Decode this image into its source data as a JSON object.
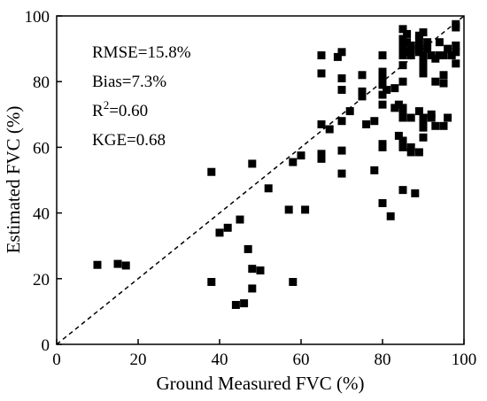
{
  "chart_data": {
    "type": "scatter",
    "title": "",
    "xlabel": "Ground Measured FVC (%)",
    "ylabel": "Estimated FVC (%)",
    "xlim": [
      0,
      100
    ],
    "ylim": [
      0,
      100
    ],
    "xticks": [
      0,
      20,
      40,
      60,
      80,
      100
    ],
    "yticks": [
      0,
      20,
      40,
      60,
      80,
      100
    ],
    "grid": false,
    "legend": "none",
    "reference_line": {
      "x": [
        0,
        100
      ],
      "y": [
        0,
        100
      ],
      "style": "dashed"
    },
    "annotations": {
      "rmse": "RMSE=15.8%",
      "bias": "Bias=7.3%",
      "r2_prefix": "R",
      "r2_sup": "2",
      "r2_value": "=0.60",
      "kge": "KGE=0.68"
    },
    "marker_color": "#000000",
    "points": [
      [
        10,
        24.2
      ],
      [
        15,
        24.5
      ],
      [
        17,
        24
      ],
      [
        38,
        52.5
      ],
      [
        38,
        19
      ],
      [
        40,
        34
      ],
      [
        42,
        35.5
      ],
      [
        44,
        12
      ],
      [
        45,
        38
      ],
      [
        46,
        12.5
      ],
      [
        47,
        29
      ],
      [
        48,
        55
      ],
      [
        48,
        23
      ],
      [
        48,
        17
      ],
      [
        50,
        22.5
      ],
      [
        52,
        47.5
      ],
      [
        57,
        41
      ],
      [
        58,
        19
      ],
      [
        58,
        55.5
      ],
      [
        60,
        57.5
      ],
      [
        61,
        41
      ],
      [
        65,
        88
      ],
      [
        65,
        82.5
      ],
      [
        65,
        67
      ],
      [
        65,
        58
      ],
      [
        65,
        56.5
      ],
      [
        67,
        65.5
      ],
      [
        69,
        87.5
      ],
      [
        70,
        89
      ],
      [
        70,
        81
      ],
      [
        70,
        77.5
      ],
      [
        70,
        68
      ],
      [
        70,
        59
      ],
      [
        70,
        52
      ],
      [
        72,
        71
      ],
      [
        75,
        82
      ],
      [
        75,
        77
      ],
      [
        75,
        75.5
      ],
      [
        76,
        67
      ],
      [
        78,
        68
      ],
      [
        78,
        53
      ],
      [
        80,
        88
      ],
      [
        80,
        83
      ],
      [
        80,
        81
      ],
      [
        80,
        79
      ],
      [
        80,
        76
      ],
      [
        80,
        73
      ],
      [
        80,
        61
      ],
      [
        80,
        60
      ],
      [
        80,
        43
      ],
      [
        81,
        77.5
      ],
      [
        82,
        39
      ],
      [
        83,
        78
      ],
      [
        83,
        72
      ],
      [
        84,
        73
      ],
      [
        84,
        63.5
      ],
      [
        85,
        96
      ],
      [
        85,
        93
      ],
      [
        85,
        91
      ],
      [
        85,
        90
      ],
      [
        85,
        88
      ],
      [
        85,
        85
      ],
      [
        85,
        80
      ],
      [
        85,
        72
      ],
      [
        85,
        70
      ],
      [
        85,
        69
      ],
      [
        85,
        62
      ],
      [
        85,
        60
      ],
      [
        85,
        47
      ],
      [
        86,
        94.5
      ],
      [
        86,
        92
      ],
      [
        86,
        89
      ],
      [
        87,
        91
      ],
      [
        87,
        90
      ],
      [
        87,
        88
      ],
      [
        87,
        69
      ],
      [
        87,
        60
      ],
      [
        87,
        58.5
      ],
      [
        88,
        46
      ],
      [
        89,
        94
      ],
      [
        89,
        93
      ],
      [
        89,
        91
      ],
      [
        89,
        90
      ],
      [
        89,
        89
      ],
      [
        89,
        71
      ],
      [
        89,
        58.5
      ],
      [
        90,
        95
      ],
      [
        90,
        88
      ],
      [
        90,
        86
      ],
      [
        90,
        84
      ],
      [
        90,
        82.5
      ],
      [
        90,
        69
      ],
      [
        90,
        68
      ],
      [
        90,
        66
      ],
      [
        90,
        63
      ],
      [
        91,
        92
      ],
      [
        91,
        90
      ],
      [
        92,
        88
      ],
      [
        92,
        70
      ],
      [
        92,
        69
      ],
      [
        93,
        87
      ],
      [
        93,
        80
      ],
      [
        93,
        66.5
      ],
      [
        94,
        92
      ],
      [
        94,
        88
      ],
      [
        95,
        88
      ],
      [
        95,
        82
      ],
      [
        95,
        79.5
      ],
      [
        95,
        66.5
      ],
      [
        96,
        90
      ],
      [
        96,
        69
      ],
      [
        97,
        88
      ],
      [
        98,
        97.5
      ],
      [
        98,
        96.5
      ],
      [
        98,
        91
      ],
      [
        98,
        89
      ],
      [
        98,
        85.5
      ]
    ]
  }
}
